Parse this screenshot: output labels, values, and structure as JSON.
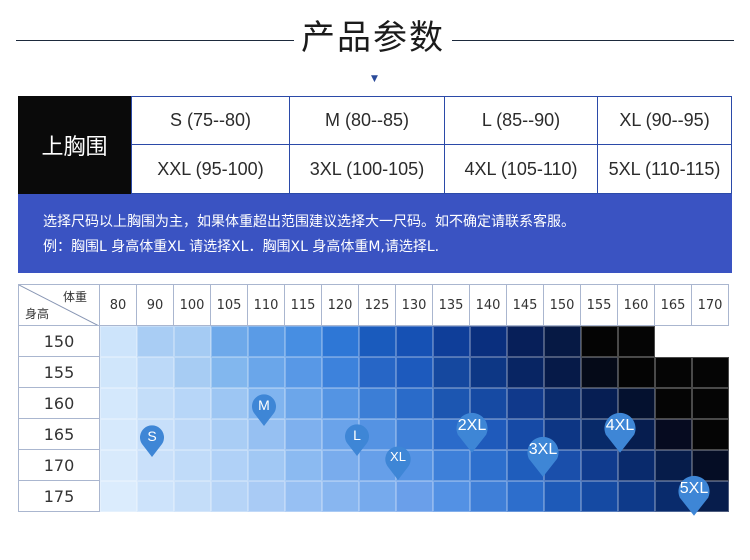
{
  "header": {
    "title": "产品参数"
  },
  "size_table": {
    "chest_label": "上胸围",
    "row1": [
      "S (75--80)",
      "M (80--85)",
      "L (85--90)",
      "XL (90--95)"
    ],
    "row2": [
      "XXL (95-100)",
      "3XL (100-105)",
      "4XL (105-110)",
      "5XL (110-115)"
    ]
  },
  "notice": {
    "line1": "选择尺码以上胸围为主，如果体重超出范围建议选择大一尺码。如不确定请联系客服。",
    "line2": "例：胸围L 身高体重XL 请选择XL．胸围XL 身高体重M,请选择L."
  },
  "grid": {
    "corner_weight": "体重",
    "corner_height": "身高",
    "weights": [
      "80",
      "90",
      "100",
      "105",
      "110",
      "115",
      "120",
      "125",
      "130",
      "135",
      "140",
      "145",
      "150",
      "155",
      "160",
      "165",
      "170"
    ],
    "heights": [
      "150",
      "155",
      "160",
      "165",
      "170",
      "175"
    ],
    "colors": [
      [
        "#cde4fb",
        "#a9cdf4",
        "#a5cbf3",
        "#6ea9ea",
        "#5a9be6",
        "#478ee2",
        "#2e77d6",
        "#1a5bbd",
        "#1651b4",
        "#0f3e99",
        "#0a2f7e",
        "#071f59",
        "#061944",
        "#040404",
        "#050505",
        "#ffffff",
        "#ffffff"
      ],
      [
        "#d0e6fb",
        "#bcd9f8",
        "#a7ccf3",
        "#82b7ee",
        "#6aa6ea",
        "#5898e6",
        "#3d82dc",
        "#2766c6",
        "#1d5abd",
        "#15489f",
        "#0d3785",
        "#082563",
        "#061a48",
        "#050a18",
        "#040404",
        "#050505",
        "#050505"
      ],
      [
        "#d4e8fc",
        "#c3ddf9",
        "#b7d6f8",
        "#9dc6f3",
        "#80b4ef",
        "#6ca6ea",
        "#5494e3",
        "#3c7ed6",
        "#2a6bc9",
        "#1c56b1",
        "#164aa3",
        "#10398b",
        "#0a2b6d",
        "#061e53",
        "#04112f",
        "#050505",
        "#050505"
      ],
      [
        "#d6e9fc",
        "#c7dffa",
        "#bcd8f8",
        "#a9cdf5",
        "#96c0f2",
        "#7eb0ee",
        "#6aa3ea",
        "#5593e3",
        "#3f80d8",
        "#2b6bca",
        "#1f5abb",
        "#164aa6",
        "#0d3684",
        "#082a69",
        "#061d4f",
        "#060b20",
        "#050505"
      ],
      [
        "#d8eafc",
        "#c9e0fa",
        "#c0dbf9",
        "#b0d1f7",
        "#a1c8f4",
        "#8bbaf1",
        "#79aced",
        "#669fe9",
        "#5593e4",
        "#3e80d9",
        "#2d6fcd",
        "#1f5dbc",
        "#1a4fab",
        "#103b8e",
        "#092a6c",
        "#061c4a",
        "#050d25"
      ],
      [
        "#dbecfd",
        "#cde3fb",
        "#c4ddf9",
        "#b6d4f7",
        "#a9cbf5",
        "#97c0f3",
        "#88b6f0",
        "#76aaed",
        "#6a9fea",
        "#5391e4",
        "#3f7fd8",
        "#2d6ecc",
        "#1e5ab8",
        "#154aa3",
        "#0e3a8a",
        "#092b6c",
        "#071d4c"
      ]
    ]
  },
  "markers": {
    "S": "S",
    "M": "M",
    "L": "L",
    "XL": "XL",
    "2XL": "2XL",
    "3XL": "3XL",
    "4XL": "4XL",
    "5XL": "5XL"
  },
  "theme": {
    "accent": "#3a53c2",
    "pin": "#3e86d6"
  }
}
